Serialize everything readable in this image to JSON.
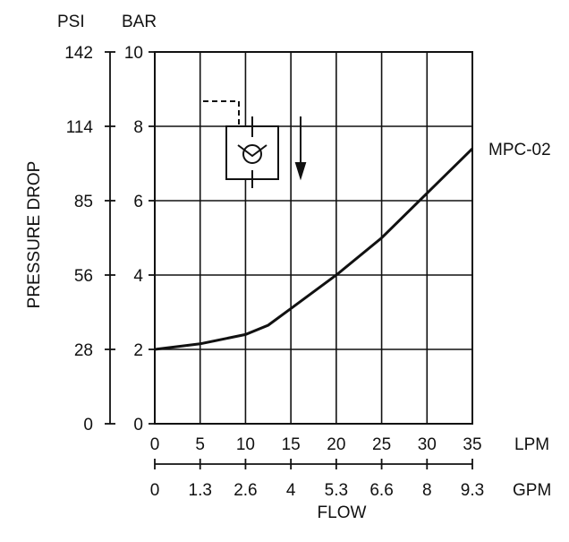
{
  "chart_data": {
    "type": "line",
    "title": "",
    "y_units": {
      "left": "PSI",
      "right": "BAR"
    },
    "ylabel": "PRESSURE DROP",
    "xlabel": "FLOW",
    "x_units": {
      "primary": "LPM",
      "secondary": "GPM"
    },
    "xlim": [
      0,
      35
    ],
    "ylim": [
      0,
      10
    ],
    "grid": true,
    "x_ticks_lpm": [
      "0",
      "5",
      "10",
      "15",
      "20",
      "25",
      "30",
      "35"
    ],
    "x_ticks_gpm": [
      "0",
      "1.3",
      "2.6",
      "4",
      "5.3",
      "6.6",
      "8",
      "9.3"
    ],
    "y_ticks_bar": [
      "0",
      "2",
      "4",
      "6",
      "8",
      "10"
    ],
    "y_ticks_psi": [
      "0",
      "28",
      "56",
      "85",
      "114",
      "142"
    ],
    "series": [
      {
        "name": "MPC-02",
        "x": [
          0,
          5,
          10,
          12.5,
          15,
          20,
          25,
          30,
          35
        ],
        "y": [
          2.0,
          2.15,
          2.4,
          2.65,
          3.1,
          4.0,
          5.0,
          6.2,
          7.4
        ]
      }
    ]
  }
}
